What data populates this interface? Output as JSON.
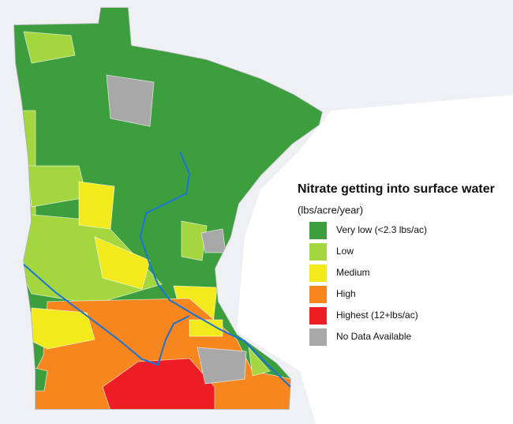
{
  "title": "Nitrate getting into surface water",
  "subtitle": "(lbs/acre/year)",
  "legend": [
    {
      "label": "Very low (<2.3 lbs/ac)",
      "color": "#3d9e3d"
    },
    {
      "label": "Low",
      "color": "#a3d63f"
    },
    {
      "label": "Medium",
      "color": "#f2ea1c"
    },
    {
      "label": "High",
      "color": "#f7861e"
    },
    {
      "label": "Highest (12+lbs/ac)",
      "color": "#ee1d24"
    },
    {
      "label": "No Data Available",
      "color": "#a8a8a8"
    }
  ]
}
